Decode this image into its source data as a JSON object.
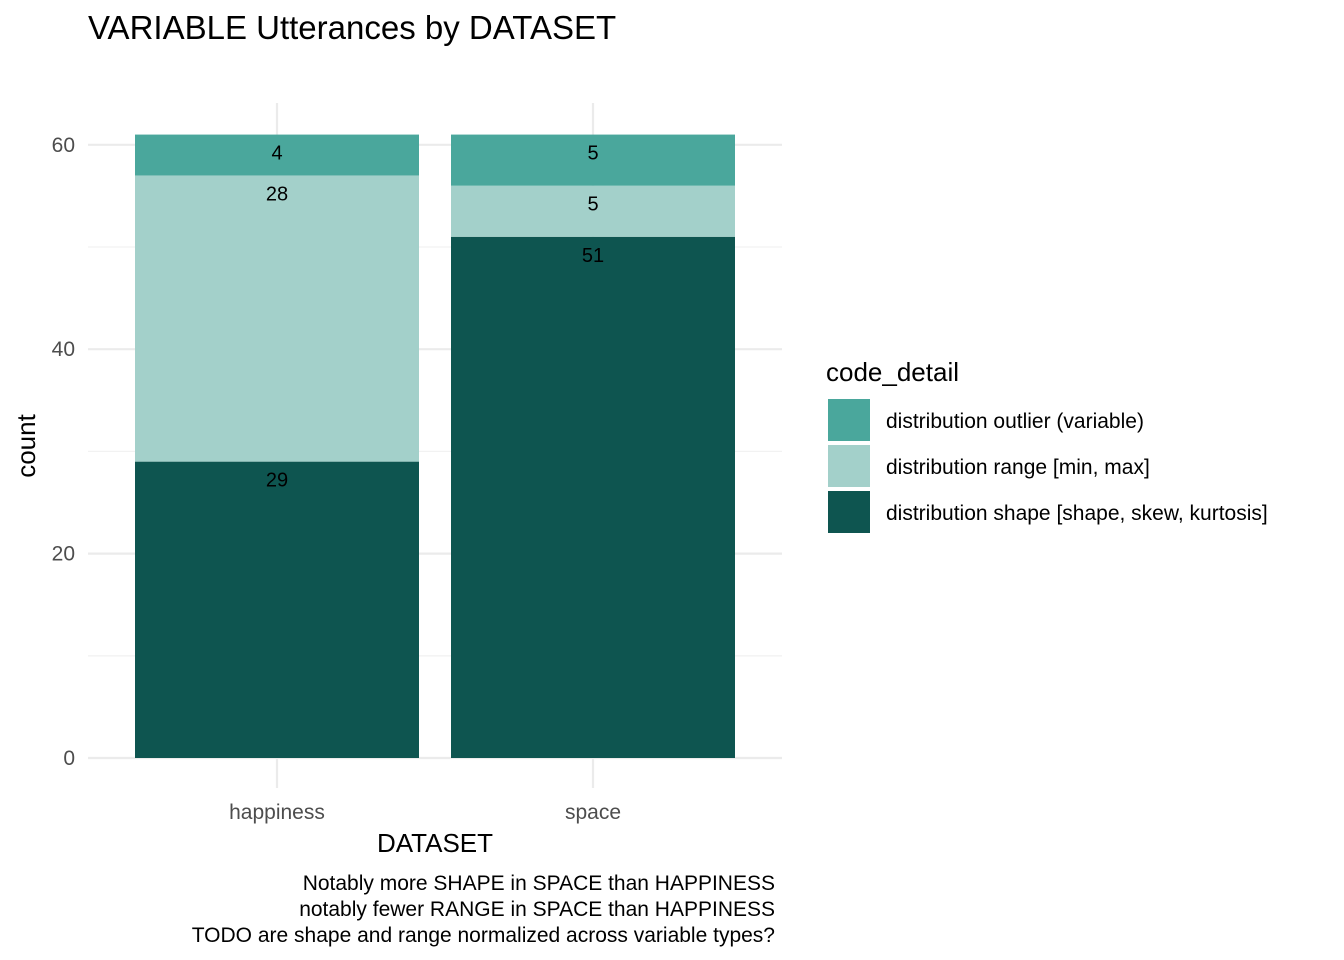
{
  "chart_data": {
    "type": "bar",
    "stacked": true,
    "title": "VARIABLE Utterances by DATASET",
    "xlabel": "DATASET",
    "ylabel": "count",
    "categories": [
      "happiness",
      "space"
    ],
    "series": [
      {
        "name": "distribution shape [shape, skew, kurtosis]",
        "values": [
          29,
          51
        ],
        "color": "#0e5550"
      },
      {
        "name": "distribution range [min, max]",
        "values": [
          28,
          5
        ],
        "color": "#a3d0ca"
      },
      {
        "name": "distribution outlier (variable)",
        "values": [
          4,
          5
        ],
        "color": "#4aa79c"
      }
    ],
    "ylim": [
      0,
      61
    ],
    "yticks": [
      0,
      20,
      40,
      60
    ],
    "grid": true,
    "legend": {
      "title": "code_detail",
      "placement": "right",
      "order": [
        "distribution outlier (variable)",
        "distribution range [min, max]",
        "distribution shape [shape, skew, kurtosis]"
      ]
    },
    "caption": [
      "Notably more SHAPE in SPACE than HAPPINESS",
      "notably fewer RANGE in SPACE than HAPPINESS",
      "TODO are shape and range normalized across variable types?"
    ]
  }
}
